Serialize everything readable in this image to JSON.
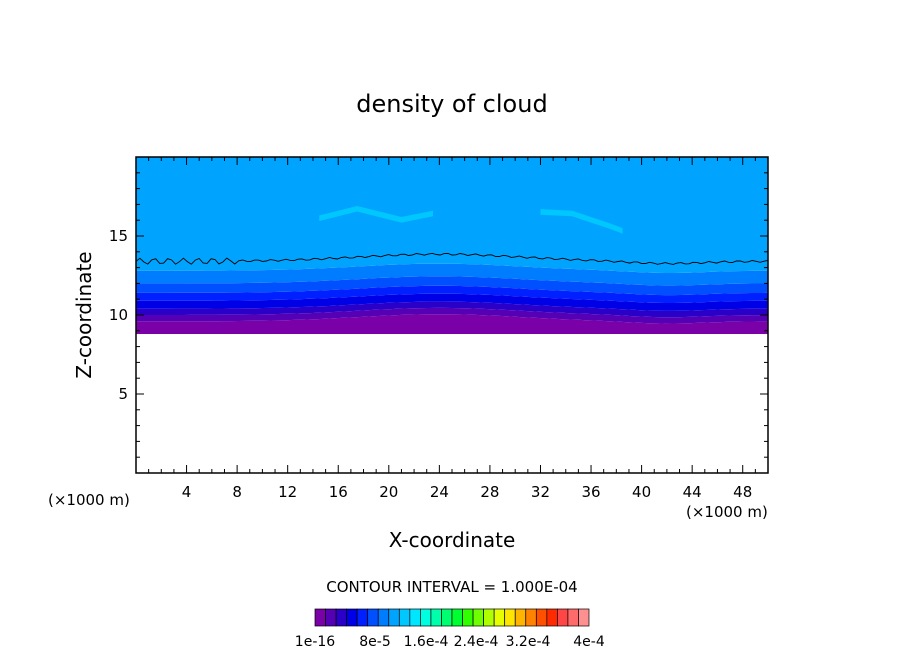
{
  "chart_data": {
    "type": "heatmap",
    "title": "density of cloud",
    "xlabel": "X-coordinate",
    "ylabel": "Z-coordinate",
    "x_unit_left": "(×1000 m)",
    "x_unit_right": "(×1000 m)",
    "xlim": [
      0,
      50
    ],
    "ylim": [
      0,
      20
    ],
    "xticks": [
      4,
      8,
      12,
      16,
      20,
      24,
      28,
      32,
      36,
      40,
      44,
      48
    ],
    "yticks": [
      5,
      10,
      15
    ],
    "contour_interval_label": "CONTOUR INTERVAL = 1.000E-04",
    "colorbar_labels": [
      "1e-16",
      "8e-5",
      "1.6e-4",
      "2.4e-4",
      "3.2e-4",
      "4e-4"
    ],
    "colorbar_colors": [
      "#7a00a8",
      "#5500b4",
      "#2a00c8",
      "#0000e6",
      "#0020ff",
      "#0050ff",
      "#007cff",
      "#00a4ff",
      "#00c8ff",
      "#00e6ff",
      "#00ffe0",
      "#00ffaa",
      "#00ff70",
      "#00ff30",
      "#30ff00",
      "#70ff00",
      "#b0ff00",
      "#e6ff00",
      "#ffe600",
      "#ffb400",
      "#ff8200",
      "#ff5000",
      "#ff2a00",
      "#ff4646",
      "#ff6a6a",
      "#ff9090"
    ],
    "layers": [
      {
        "z_bottom": 8.8,
        "z_top": 9.6,
        "color": "#7a00a8"
      },
      {
        "z_bottom": 9.6,
        "z_top": 10.0,
        "color": "#5500b4"
      },
      {
        "z_bottom": 10.0,
        "z_top": 10.4,
        "color": "#2a00c8"
      },
      {
        "z_bottom": 10.4,
        "z_top": 10.9,
        "color": "#0000e6"
      },
      {
        "z_bottom": 10.9,
        "z_top": 11.4,
        "color": "#0020ff"
      },
      {
        "z_bottom": 11.4,
        "z_top": 12.0,
        "color": "#0050ff"
      },
      {
        "z_bottom": 12.0,
        "z_top": 12.8,
        "color": "#007cff"
      },
      {
        "z_bottom": 12.8,
        "z_top": 20.0,
        "color": "#00a4ff"
      }
    ],
    "contour_line_z": 13.4,
    "bright_patches": [
      {
        "x": [
          14.5,
          17.5,
          21.0,
          23.5
        ],
        "z": [
          16.3,
          16.9,
          16.2,
          16.6
        ],
        "color": "#00c8ff"
      },
      {
        "x": [
          32.0,
          34.5,
          37.5,
          38.5
        ],
        "z": [
          16.7,
          16.6,
          15.8,
          15.5
        ],
        "color": "#00c8ff"
      }
    ]
  }
}
